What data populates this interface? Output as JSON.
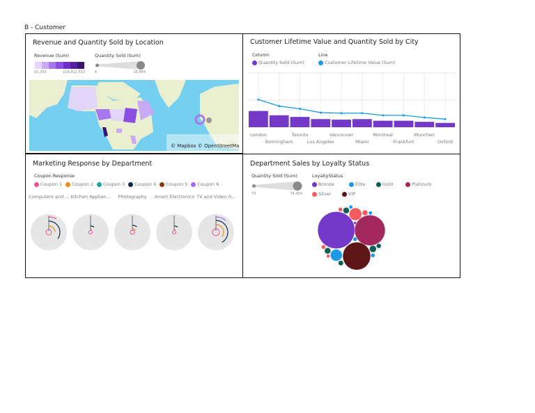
{
  "page": {
    "title": "B - Customer"
  },
  "map_panel": {
    "title": "Revenue and Quantity Sold by Location",
    "revenue_legend": {
      "label": "Revenue (Sum)",
      "min": "$5,393",
      "max": "$18,812,552",
      "colors": [
        "#e2d6f8",
        "#c9aaf5",
        "#a777f0",
        "#8a4fe0",
        "#6f2ecb",
        "#56209f",
        "#3b1470"
      ]
    },
    "quantity_legend": {
      "label": "Quantity Sold (Sum)",
      "min": "6",
      "max": "28,844"
    },
    "attribution": "© Mapbox © OpenStreetMap",
    "colors": {
      "ocean": "#75cff0",
      "land": "#e9efcf"
    }
  },
  "city_panel": {
    "title": "Customer Lifetime Value and Quantity Sold by City",
    "legend_column_label": "Column",
    "legend_line_label": "Line",
    "chart_data": {
      "type": "bar",
      "categories": [
        "London",
        "Birmingham",
        "Toronto",
        "Los Angeles",
        "Vancouver",
        "Miami",
        "Montreal",
        "Frankfurt",
        "Munchen",
        "Oxford"
      ],
      "series": [
        {
          "name": "Quantity Sold (Sum)",
          "type": "bar",
          "color": "#7439c9",
          "values": [
            30,
            22,
            19,
            15,
            14,
            15,
            12,
            12,
            10,
            8
          ]
        },
        {
          "name": "Customer Lifetime Value (Sum)",
          "type": "line",
          "color": "#1a9ae8",
          "values": [
            51,
            39,
            34,
            27,
            26,
            26,
            22,
            22,
            18,
            15
          ]
        }
      ],
      "ylim": [
        0,
        100
      ],
      "grid": true,
      "legend": "top-left"
    }
  },
  "marketing_panel": {
    "title": "Marketing Response by Department",
    "legend_title": "Coupon Response",
    "coupons": [
      {
        "label": "Coupon 1",
        "color": "#f0509a"
      },
      {
        "label": "Coupon 2",
        "color": "#ef8a17"
      },
      {
        "label": "Coupon 3",
        "color": "#13a89e"
      },
      {
        "label": "Coupon 4",
        "color": "#0d2a4a"
      },
      {
        "label": "Coupon 5",
        "color": "#8a3a10"
      },
      {
        "label": "Coupon 6",
        "color": "#a66cf6"
      }
    ],
    "departments": [
      "Computers and ...",
      "Kitchen Applian...",
      "Photography",
      "Smart Electronics",
      "TV and Video G..."
    ]
  },
  "loyalty_panel": {
    "title": "Department Sales by Loyalty Status",
    "size_legend": {
      "label": "Quantity Sold (Sum)",
      "min": "73",
      "max": "74,454"
    },
    "status_legend_title": "LoyaltyStatus",
    "statuses": [
      {
        "label": "Bronze",
        "color": "#7439c9"
      },
      {
        "label": "Elite",
        "color": "#1a9ae8"
      },
      {
        "label": "Gold",
        "color": "#0f5e5a"
      },
      {
        "label": "Platinum",
        "color": "#a3285e"
      },
      {
        "label": "Silver",
        "color": "#f45b5b"
      },
      {
        "label": "VIP",
        "color": "#5e1518"
      }
    ],
    "chart_data": {
      "type": "bubble",
      "bubbles": [
        {
          "status": "Bronze",
          "value": 74454
        },
        {
          "status": "Platinum",
          "value": 50550
        },
        {
          "status": "VIP",
          "value": 41780
        },
        {
          "status": "Silver",
          "value": 8460
        },
        {
          "status": "Elite",
          "value": 7540
        },
        {
          "status": "Gold",
          "value": 2115
        },
        {
          "status": "Gold",
          "value": 2610
        },
        {
          "status": "Gold",
          "value": 1280
        },
        {
          "status": "Gold",
          "value": 2115
        },
        {
          "status": "Gold",
          "value": 1430
        },
        {
          "status": "Silver",
          "value": 940
        },
        {
          "status": "Silver",
          "value": 1670
        },
        {
          "status": "Silver",
          "value": 940
        },
        {
          "status": "Silver",
          "value": 650
        },
        {
          "status": "Elite",
          "value": 760
        },
        {
          "status": "Elite",
          "value": 760
        },
        {
          "status": "Elite",
          "value": 940
        },
        {
          "status": "Elite",
          "value": 940
        },
        {
          "status": "Bronze",
          "value": 420
        }
      ]
    }
  }
}
